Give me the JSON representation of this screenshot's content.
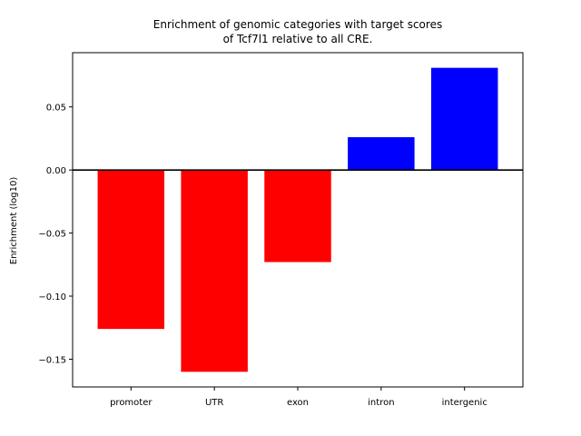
{
  "chart_data": {
    "type": "bar",
    "title_lines": [
      "Enrichment of genomic categories with target scores",
      "of Tcf7l1 relative to all CRE."
    ],
    "xlabel": "",
    "ylabel": "Enrichment (log10)",
    "categories": [
      "promoter",
      "UTR",
      "exon",
      "intron",
      "intergenic"
    ],
    "values": [
      -0.126,
      -0.16,
      -0.073,
      0.026,
      0.081
    ],
    "bar_colors": [
      "#ff0000",
      "#ff0000",
      "#ff0000",
      "#0000ff",
      "#0000ff"
    ],
    "positive_color": "#0000ff",
    "negative_color": "#ff0000",
    "ylim": [
      -0.172,
      0.093
    ],
    "yticks": [
      0.05,
      0.0,
      -0.05,
      -0.1,
      -0.15
    ],
    "ytick_labels": [
      "0.05",
      "0.00",
      "−0.05",
      "−0.10",
      "−0.15"
    ],
    "zero_line": true,
    "grid": false,
    "legend": "none"
  }
}
